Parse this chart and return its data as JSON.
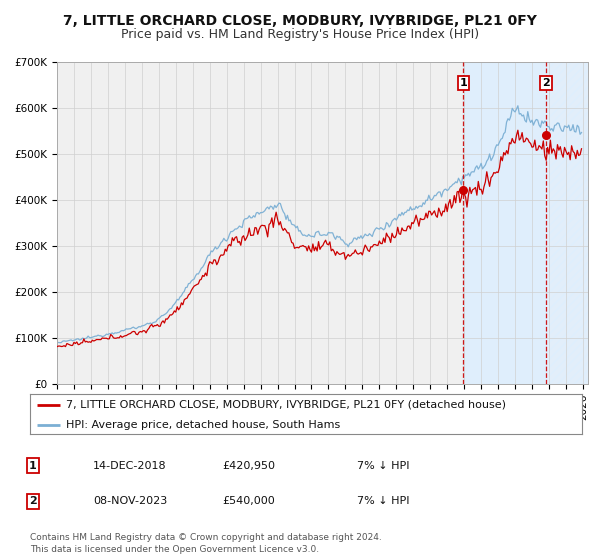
{
  "title": "7, LITTLE ORCHARD CLOSE, MODBURY, IVYBRIDGE, PL21 0FY",
  "subtitle": "Price paid vs. HM Land Registry's House Price Index (HPI)",
  "ylim": [
    0,
    700000
  ],
  "yticks": [
    0,
    100000,
    200000,
    300000,
    400000,
    500000,
    600000,
    700000
  ],
  "ytick_labels": [
    "£0",
    "£100K",
    "£200K",
    "£300K",
    "£400K",
    "£500K",
    "£600K",
    "£700K"
  ],
  "xlim_start": 1995.0,
  "xlim_end": 2026.3,
  "hpi_color": "#7bafd4",
  "price_color": "#cc0000",
  "marker_color": "#cc0000",
  "vline_color": "#cc0000",
  "background_color": "#ffffff",
  "plot_bg_color": "#f0f0f0",
  "grid_color": "#d0d0d0",
  "shade1_color": "#ddeeff",
  "shade2_color": "#ddeeff",
  "sale1_x": 2018.958,
  "sale1_y": 420950,
  "sale2_x": 2023.836,
  "sale2_y": 540000,
  "legend_label1": "7, LITTLE ORCHARD CLOSE, MODBURY, IVYBRIDGE, PL21 0FY (detached house)",
  "legend_label2": "HPI: Average price, detached house, South Hams",
  "ann1_label": "1",
  "ann1_date": "14-DEC-2018",
  "ann1_price": "£420,950",
  "ann1_hpi": "7% ↓ HPI",
  "ann2_label": "2",
  "ann2_date": "08-NOV-2023",
  "ann2_price": "£540,000",
  "ann2_hpi": "7% ↓ HPI",
  "title_fontsize": 10,
  "subtitle_fontsize": 9,
  "tick_fontsize": 7.5,
  "legend_fontsize": 8,
  "ann_fontsize": 8,
  "footer_text": "Contains HM Land Registry data © Crown copyright and database right 2024.\nThis data is licensed under the Open Government Licence v3.0.",
  "footer_fontsize": 6.5
}
